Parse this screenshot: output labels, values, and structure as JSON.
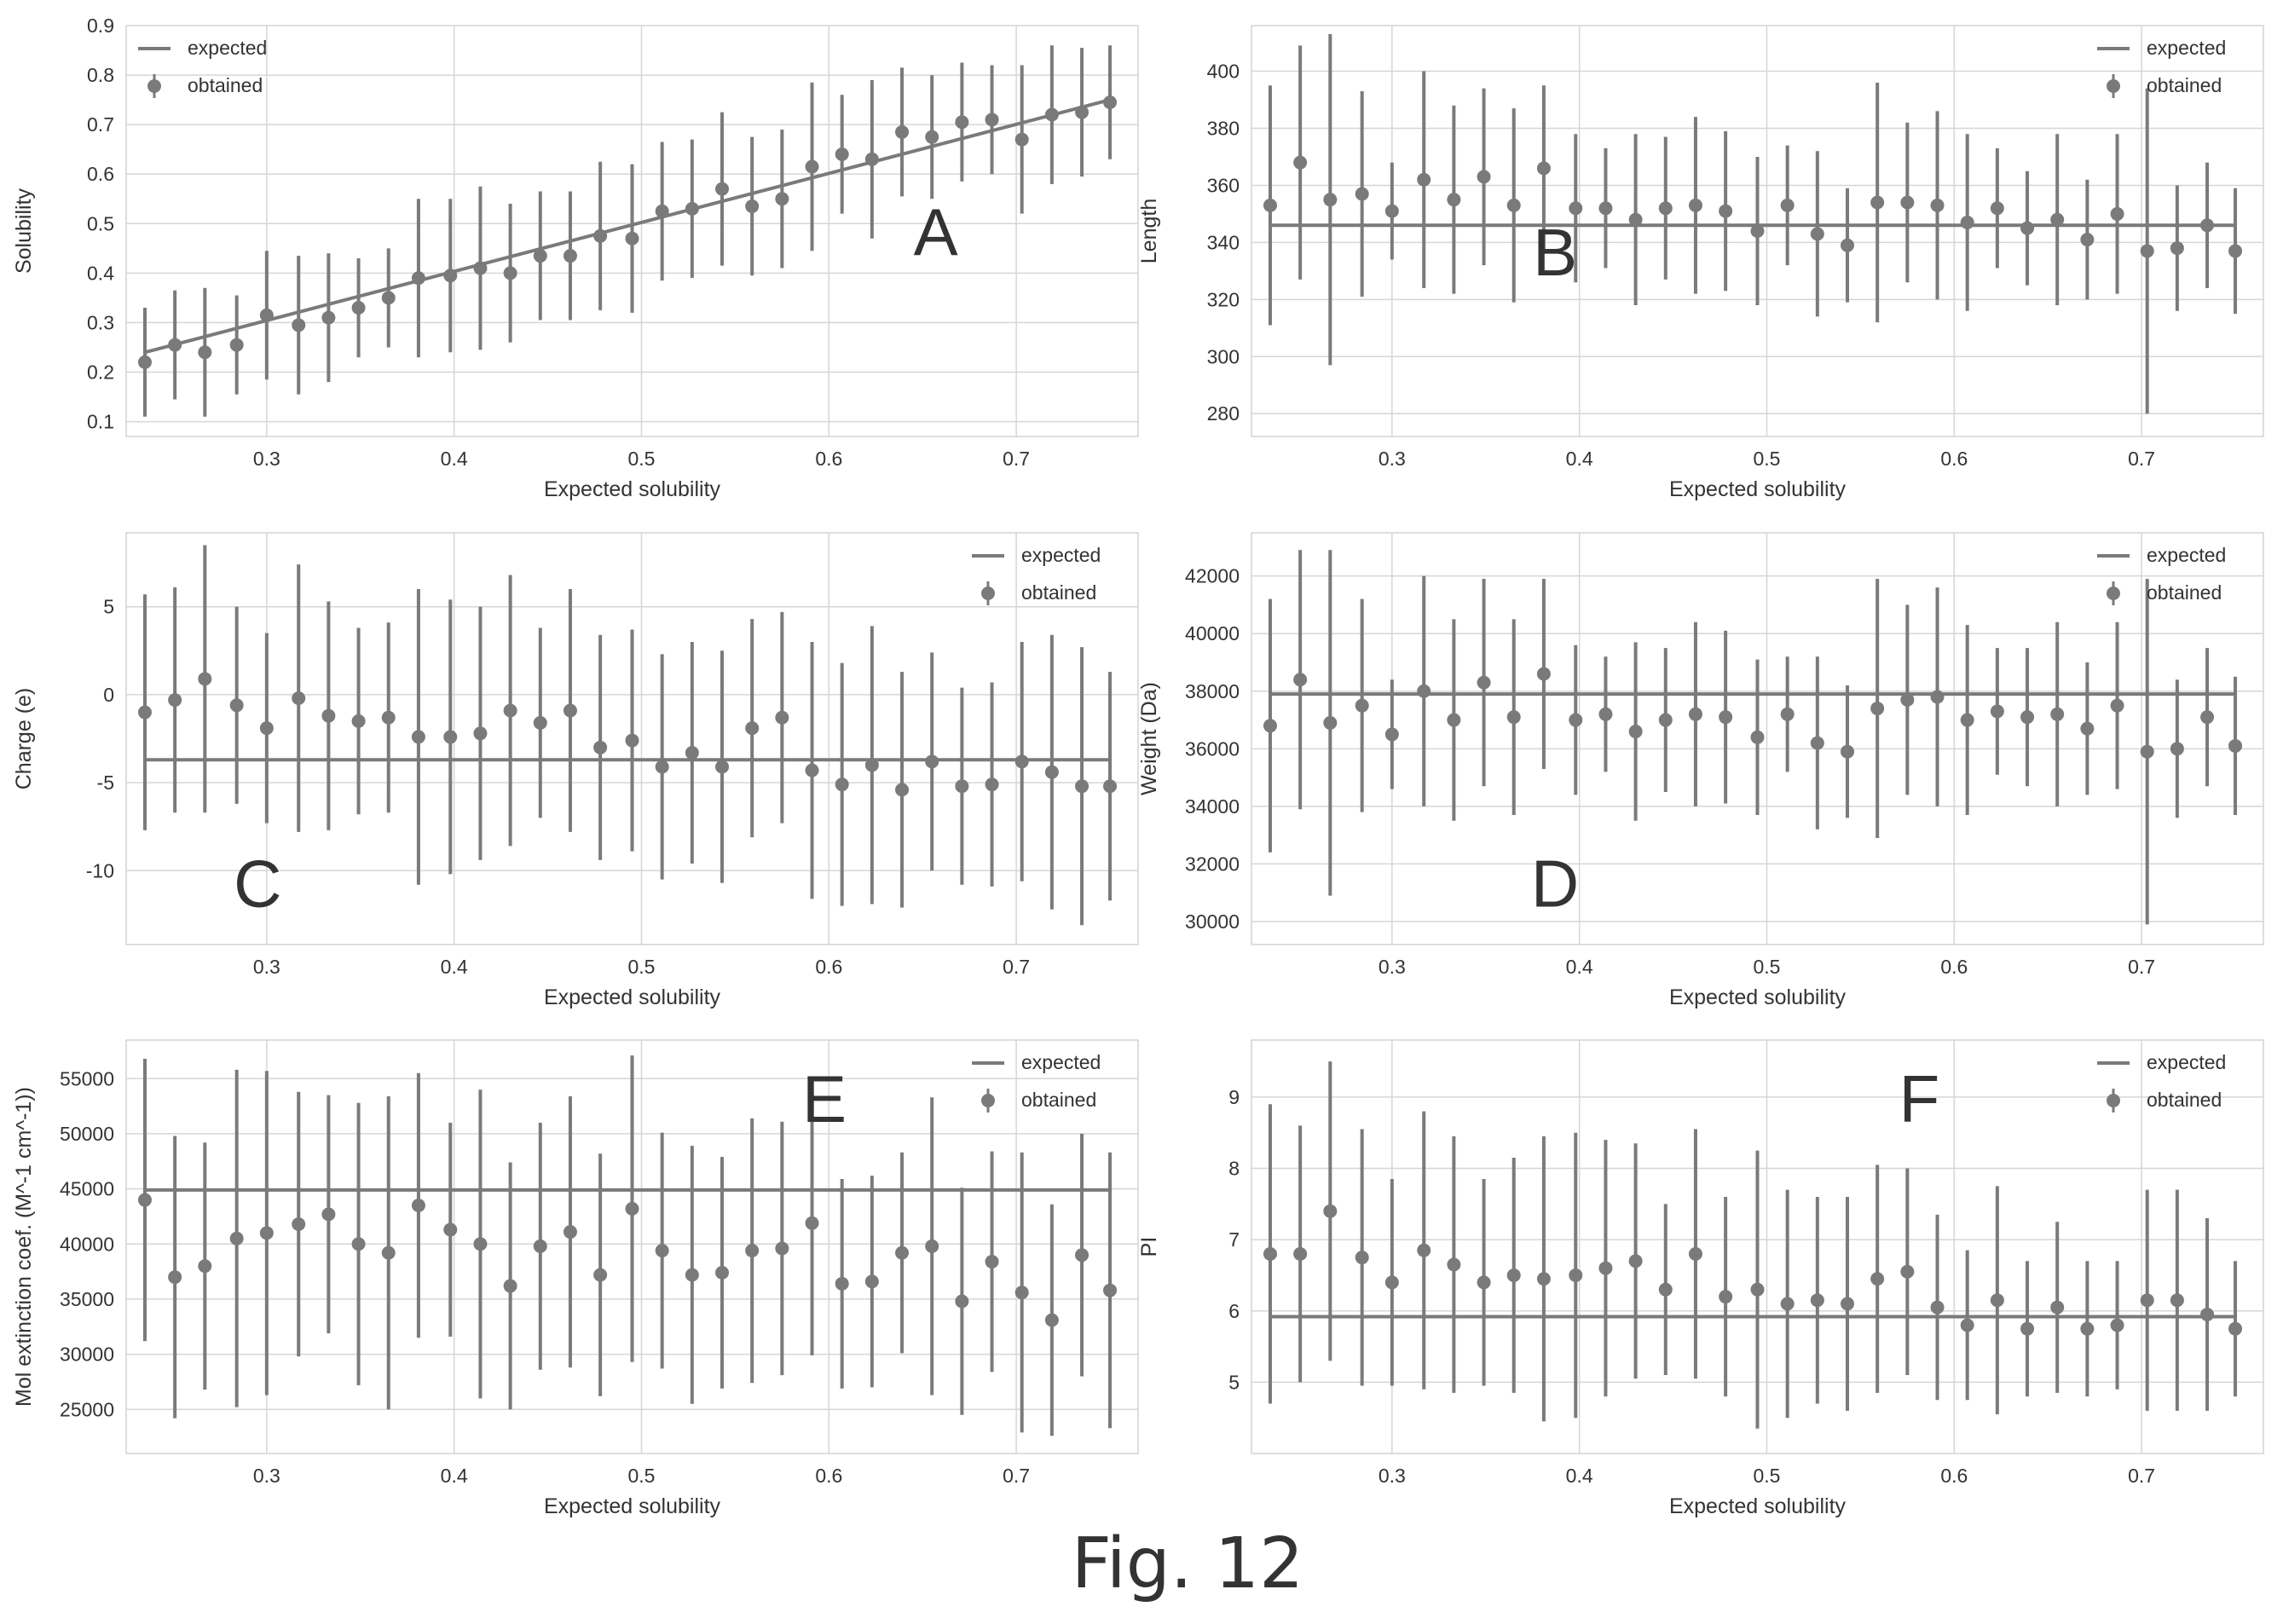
{
  "figure_caption": "Fig. 12",
  "colors": {
    "series": "#7a7a7a",
    "grid": "#d6d6d6",
    "frame": "#bdbdbd",
    "text": "#333333"
  },
  "chart_data": [
    {
      "type": "scatter",
      "panel_letter": "A",
      "xlabel": "Expected solubility",
      "ylabel": "Solubility",
      "xlim": [
        0.225,
        0.765
      ],
      "ylim": [
        0.07,
        0.9
      ],
      "xticks": [
        0.3,
        0.4,
        0.5,
        0.6,
        0.7
      ],
      "yticks": [
        0.1,
        0.2,
        0.3,
        0.4,
        0.5,
        0.6,
        0.7,
        0.8,
        0.9
      ],
      "grid": true,
      "legend_position": "top-left",
      "series": [
        {
          "name": "expected",
          "kind": "line",
          "x": [
            0.235,
            0.75
          ],
          "y": [
            0.24,
            0.75
          ]
        },
        {
          "name": "obtained",
          "kind": "errorbar",
          "x": [
            0.235,
            0.251,
            0.267,
            0.284,
            0.3,
            0.317,
            0.333,
            0.349,
            0.365,
            0.381,
            0.398,
            0.414,
            0.43,
            0.446,
            0.462,
            0.478,
            0.495,
            0.511,
            0.527,
            0.543,
            0.559,
            0.575,
            0.591,
            0.607,
            0.623,
            0.639,
            0.655,
            0.671,
            0.687,
            0.703,
            0.719,
            0.735,
            0.75
          ],
          "y": [
            0.22,
            0.255,
            0.24,
            0.255,
            0.315,
            0.295,
            0.31,
            0.33,
            0.35,
            0.39,
            0.395,
            0.41,
            0.4,
            0.435,
            0.435,
            0.475,
            0.47,
            0.525,
            0.53,
            0.57,
            0.535,
            0.55,
            0.615,
            0.64,
            0.63,
            0.685,
            0.675,
            0.705,
            0.71,
            0.67,
            0.72,
            0.725,
            0.745
          ],
          "err": [
            0.11,
            0.11,
            0.13,
            0.1,
            0.13,
            0.14,
            0.13,
            0.1,
            0.1,
            0.16,
            0.155,
            0.165,
            0.14,
            0.13,
            0.13,
            0.15,
            0.15,
            0.14,
            0.14,
            0.155,
            0.14,
            0.14,
            0.17,
            0.12,
            0.16,
            0.13,
            0.125,
            0.12,
            0.11,
            0.15,
            0.14,
            0.13,
            0.115
          ]
        }
      ]
    },
    {
      "type": "scatter",
      "panel_letter": "B",
      "xlabel": "Expected solubility",
      "ylabel": "Length",
      "xlim": [
        0.225,
        0.765
      ],
      "ylim": [
        272,
        416
      ],
      "xticks": [
        0.3,
        0.4,
        0.5,
        0.6,
        0.7
      ],
      "yticks": [
        280,
        300,
        320,
        340,
        360,
        380,
        400
      ],
      "grid": true,
      "legend_position": "top-right",
      "series": [
        {
          "name": "expected",
          "kind": "line",
          "x": [
            0.235,
            0.75
          ],
          "y": [
            346,
            346
          ]
        },
        {
          "name": "obtained",
          "kind": "errorbar",
          "x": [
            0.235,
            0.251,
            0.267,
            0.284,
            0.3,
            0.317,
            0.333,
            0.349,
            0.365,
            0.381,
            0.398,
            0.414,
            0.43,
            0.446,
            0.462,
            0.478,
            0.495,
            0.511,
            0.527,
            0.543,
            0.559,
            0.575,
            0.591,
            0.607,
            0.623,
            0.639,
            0.655,
            0.671,
            0.687,
            0.703,
            0.719,
            0.735,
            0.75
          ],
          "y": [
            353,
            368,
            355,
            357,
            351,
            362,
            355,
            363,
            353,
            366,
            352,
            352,
            348,
            352,
            353,
            351,
            344,
            353,
            343,
            339,
            354,
            354,
            353,
            347,
            352,
            345,
            348,
            341,
            350,
            337,
            338,
            346,
            337
          ],
          "err": [
            42,
            41,
            58,
            36,
            17,
            38,
            33,
            31,
            34,
            29,
            26,
            21,
            30,
            25,
            31,
            28,
            26,
            21,
            29,
            20,
            42,
            28,
            33,
            31,
            21,
            20,
            30,
            21,
            28,
            57,
            22,
            22,
            22
          ]
        }
      ]
    },
    {
      "type": "scatter",
      "panel_letter": "C",
      "xlabel": "Expected solubility",
      "ylabel": "Charge (e)",
      "xlim": [
        0.225,
        0.765
      ],
      "ylim": [
        -14.2,
        9.2
      ],
      "xticks": [
        0.3,
        0.4,
        0.5,
        0.6,
        0.7
      ],
      "yticks": [
        -10,
        -5,
        0,
        5
      ],
      "grid": true,
      "legend_position": "top-right",
      "series": [
        {
          "name": "expected",
          "kind": "line",
          "x": [
            0.235,
            0.75
          ],
          "y": [
            -3.7,
            -3.7
          ]
        },
        {
          "name": "obtained",
          "kind": "errorbar",
          "x": [
            0.235,
            0.251,
            0.267,
            0.284,
            0.3,
            0.317,
            0.333,
            0.349,
            0.365,
            0.381,
            0.398,
            0.414,
            0.43,
            0.446,
            0.462,
            0.478,
            0.495,
            0.511,
            0.527,
            0.543,
            0.559,
            0.575,
            0.591,
            0.607,
            0.623,
            0.639,
            0.655,
            0.671,
            0.687,
            0.703,
            0.719,
            0.735,
            0.75
          ],
          "y": [
            -1.0,
            -0.3,
            0.9,
            -0.6,
            -1.9,
            -0.2,
            -1.2,
            -1.5,
            -1.3,
            -2.4,
            -2.4,
            -2.2,
            -0.9,
            -1.6,
            -0.9,
            -3.0,
            -2.6,
            -4.1,
            -3.3,
            -4.1,
            -1.9,
            -1.3,
            -4.3,
            -5.1,
            -4.0,
            -5.4,
            -3.8,
            -5.2,
            -5.1,
            -3.8,
            -4.4,
            -5.2,
            -5.2
          ],
          "err": [
            6.7,
            6.4,
            7.6,
            5.6,
            5.4,
            7.6,
            6.5,
            5.3,
            5.4,
            8.4,
            7.8,
            7.2,
            7.7,
            5.4,
            6.9,
            6.4,
            6.3,
            6.4,
            6.3,
            6.6,
            6.2,
            6.0,
            7.3,
            6.9,
            7.9,
            6.7,
            6.2,
            5.6,
            5.8,
            6.8,
            7.8,
            7.9,
            6.5
          ]
        }
      ]
    },
    {
      "type": "scatter",
      "panel_letter": "D",
      "xlabel": "Expected solubility",
      "ylabel": "Weight (Da)",
      "xlim": [
        0.225,
        0.765
      ],
      "ylim": [
        29200,
        43500
      ],
      "xticks": [
        0.3,
        0.4,
        0.5,
        0.6,
        0.7
      ],
      "yticks": [
        30000,
        32000,
        34000,
        36000,
        38000,
        40000,
        42000
      ],
      "grid": true,
      "legend_position": "top-right",
      "series": [
        {
          "name": "expected",
          "kind": "line",
          "x": [
            0.235,
            0.75
          ],
          "y": [
            37900,
            37900
          ]
        },
        {
          "name": "obtained",
          "kind": "errorbar",
          "x": [
            0.235,
            0.251,
            0.267,
            0.284,
            0.3,
            0.317,
            0.333,
            0.349,
            0.365,
            0.381,
            0.398,
            0.414,
            0.43,
            0.446,
            0.462,
            0.478,
            0.495,
            0.511,
            0.527,
            0.543,
            0.559,
            0.575,
            0.591,
            0.607,
            0.623,
            0.639,
            0.655,
            0.671,
            0.687,
            0.703,
            0.719,
            0.735,
            0.75
          ],
          "y": [
            36800,
            38400,
            36900,
            37500,
            36500,
            38000,
            37000,
            38300,
            37100,
            38600,
            37000,
            37200,
            36600,
            37000,
            37200,
            37100,
            36400,
            37200,
            36200,
            35900,
            37400,
            37700,
            37800,
            37000,
            37300,
            37100,
            37200,
            36700,
            37500,
            35900,
            36000,
            37100,
            36100
          ],
          "err": [
            4400,
            4500,
            6000,
            3700,
            1900,
            4000,
            3500,
            3600,
            3400,
            3300,
            2600,
            2000,
            3100,
            2500,
            3200,
            3000,
            2700,
            2000,
            3000,
            2300,
            4500,
            3300,
            3800,
            3300,
            2200,
            2400,
            3200,
            2300,
            2900,
            6000,
            2400,
            2400,
            2400
          ]
        }
      ]
    },
    {
      "type": "scatter",
      "panel_letter": "E",
      "xlabel": "Expected solubility",
      "ylabel": "Mol extinction coef. (M^-1 cm^-1))",
      "xlim": [
        0.225,
        0.765
      ],
      "ylim": [
        21000,
        58500
      ],
      "xticks": [
        0.3,
        0.4,
        0.5,
        0.6,
        0.7
      ],
      "yticks": [
        25000,
        30000,
        35000,
        40000,
        45000,
        50000,
        55000
      ],
      "grid": true,
      "legend_position": "top-right",
      "series": [
        {
          "name": "expected",
          "kind": "line",
          "x": [
            0.235,
            0.75
          ],
          "y": [
            44900,
            44900
          ]
        },
        {
          "name": "obtained",
          "kind": "errorbar",
          "x": [
            0.235,
            0.251,
            0.267,
            0.284,
            0.3,
            0.317,
            0.333,
            0.349,
            0.365,
            0.381,
            0.398,
            0.414,
            0.43,
            0.446,
            0.462,
            0.478,
            0.495,
            0.511,
            0.527,
            0.543,
            0.559,
            0.575,
            0.591,
            0.607,
            0.623,
            0.639,
            0.655,
            0.671,
            0.687,
            0.703,
            0.719,
            0.735,
            0.75
          ],
          "y": [
            44000,
            37000,
            38000,
            40500,
            41000,
            41800,
            42700,
            40000,
            39200,
            43500,
            41300,
            40000,
            36200,
            39800,
            41100,
            37200,
            43200,
            39400,
            37200,
            37400,
            39400,
            39600,
            41900,
            36400,
            36600,
            39200,
            39800,
            34800,
            38400,
            35600,
            33100,
            39000,
            35800
          ],
          "err": [
            12800,
            12800,
            11200,
            15300,
            14700,
            12000,
            10800,
            12800,
            14200,
            12000,
            9700,
            14000,
            11200,
            11200,
            12300,
            11000,
            13900,
            10700,
            11700,
            10500,
            12000,
            11500,
            12000,
            9500,
            9600,
            9100,
            13500,
            10300,
            10000,
            12700,
            10500,
            11000,
            12500
          ]
        }
      ]
    },
    {
      "type": "scatter",
      "panel_letter": "F",
      "xlabel": "Expected solubility",
      "ylabel": "PI",
      "xlim": [
        0.225,
        0.765
      ],
      "ylim": [
        4.0,
        9.8
      ],
      "xticks": [
        0.3,
        0.4,
        0.5,
        0.6,
        0.7
      ],
      "yticks": [
        5,
        6,
        7,
        8,
        9
      ],
      "grid": true,
      "legend_position": "top-right",
      "series": [
        {
          "name": "expected",
          "kind": "line",
          "x": [
            0.235,
            0.75
          ],
          "y": [
            5.92,
            5.92
          ]
        },
        {
          "name": "obtained",
          "kind": "errorbar",
          "x": [
            0.235,
            0.251,
            0.267,
            0.284,
            0.3,
            0.317,
            0.333,
            0.349,
            0.365,
            0.381,
            0.398,
            0.414,
            0.43,
            0.446,
            0.462,
            0.478,
            0.495,
            0.511,
            0.527,
            0.543,
            0.559,
            0.575,
            0.591,
            0.607,
            0.623,
            0.639,
            0.655,
            0.671,
            0.687,
            0.703,
            0.719,
            0.735,
            0.75
          ],
          "y": [
            6.8,
            6.8,
            7.4,
            6.75,
            6.4,
            6.85,
            6.65,
            6.4,
            6.5,
            6.45,
            6.5,
            6.6,
            6.7,
            6.3,
            6.8,
            6.2,
            6.3,
            6.1,
            6.15,
            6.1,
            6.45,
            6.55,
            6.05,
            5.8,
            6.15,
            5.75,
            6.05,
            5.75,
            5.8,
            6.15,
            6.15,
            5.95,
            5.75
          ],
          "err": [
            2.1,
            1.8,
            2.1,
            1.8,
            1.45,
            1.95,
            1.8,
            1.45,
            1.65,
            2.0,
            2.0,
            1.8,
            1.65,
            1.2,
            1.75,
            1.4,
            1.95,
            1.6,
            1.45,
            1.5,
            1.6,
            1.45,
            1.3,
            1.05,
            1.6,
            0.95,
            1.2,
            0.95,
            0.9,
            1.55,
            1.55,
            1.35,
            0.95
          ]
        }
      ]
    }
  ]
}
